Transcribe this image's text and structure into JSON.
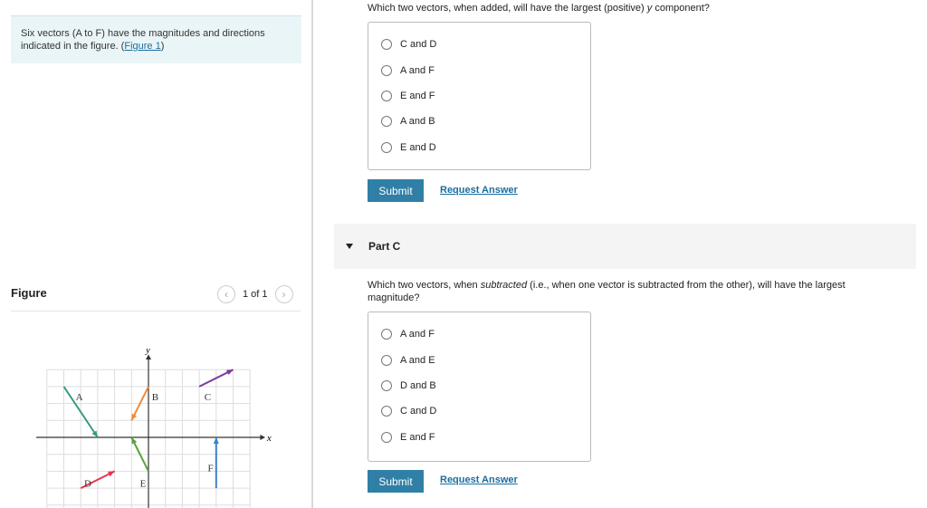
{
  "intro": {
    "text": "Six vectors (A to F) have the magnitudes and directions indicated in the figure. (",
    "link": "Figure 1",
    "end": ")"
  },
  "figure": {
    "title": "Figure",
    "pager": "1 of 1",
    "prev_icon": "chevron-left-icon",
    "next_icon": "chevron-right-icon",
    "axis_x": "x",
    "axis_y": "y",
    "vectors": [
      {
        "label": "A",
        "from": [
          -5,
          3
        ],
        "to": [
          -3,
          0
        ],
        "color": "#3a9a85"
      },
      {
        "label": "B",
        "from": [
          0,
          3
        ],
        "to": [
          -1,
          1
        ],
        "color": "#f08a3a"
      },
      {
        "label": "C",
        "from": [
          3,
          3
        ],
        "to": [
          5,
          4
        ],
        "color": "#7b3a9a"
      },
      {
        "label": "D",
        "from": [
          -4,
          -3
        ],
        "to": [
          -2,
          -2
        ],
        "color": "#e8344a"
      },
      {
        "label": "E",
        "from": [
          0,
          -2
        ],
        "to": [
          -1,
          0
        ],
        "color": "#5aa040"
      },
      {
        "label": "F",
        "from": [
          4,
          -3
        ],
        "to": [
          4,
          0
        ],
        "color": "#3a82c8"
      }
    ]
  },
  "partB": {
    "question_pre": "Which two vectors, when added, will have the largest (positive) ",
    "question_var": "y",
    "question_post": " component?",
    "options": [
      "C and D",
      "A and F",
      "E and F",
      "A and B",
      "E and D"
    ],
    "submit": "Submit",
    "request": "Request Answer"
  },
  "partC": {
    "title": "Part C",
    "question_pre": "Which two vectors, when ",
    "question_em": "subtracted",
    "question_post": " (i.e., when one vector is subtracted from the other), will have the largest magnitude?",
    "options": [
      "A and F",
      "A and E",
      "D and B",
      "C and D",
      "E and F"
    ],
    "submit": "Submit",
    "request": "Request Answer"
  },
  "colors": {
    "accent": "#2f7fa6",
    "intro_bg": "#eaf5f7"
  }
}
